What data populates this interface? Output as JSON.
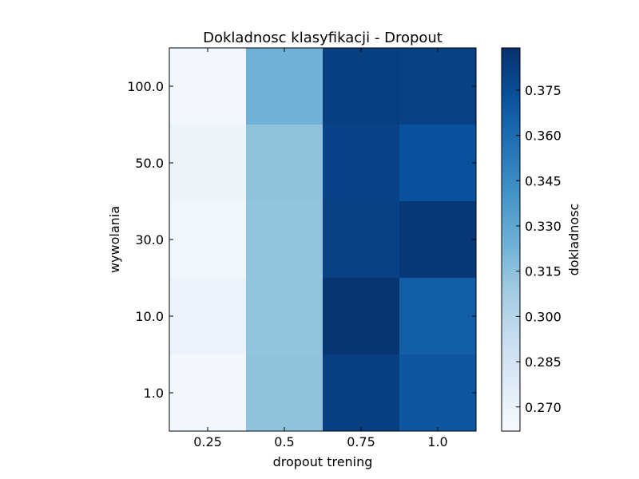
{
  "chart_data": {
    "type": "heatmap",
    "title": "Dokladnosc klasyfikacji - Dropout",
    "xlabel": "dropout trening",
    "ylabel": "wywolania",
    "x_categories": [
      "0.25",
      "0.5",
      "0.75",
      "1.0"
    ],
    "y_categories": [
      "100.0",
      "50.0",
      "30.0",
      "10.0",
      "1.0"
    ],
    "values": [
      [
        0.266,
        0.324,
        0.382,
        0.381
      ],
      [
        0.269,
        0.314,
        0.38,
        0.373
      ],
      [
        0.267,
        0.313,
        0.381,
        0.385
      ],
      [
        0.27,
        0.313,
        0.387,
        0.366
      ],
      [
        0.266,
        0.314,
        0.382,
        0.37
      ]
    ],
    "colormap": "Blues",
    "colors": {
      "low": "#f7fbff",
      "high": "#08306b",
      "frame": "#000000"
    },
    "colorbar": {
      "label": "dokladnosc",
      "range": [
        0.262,
        0.389
      ],
      "ticks": [
        "0.270",
        "0.285",
        "0.300",
        "0.315",
        "0.330",
        "0.345",
        "0.360",
        "0.375"
      ]
    }
  }
}
